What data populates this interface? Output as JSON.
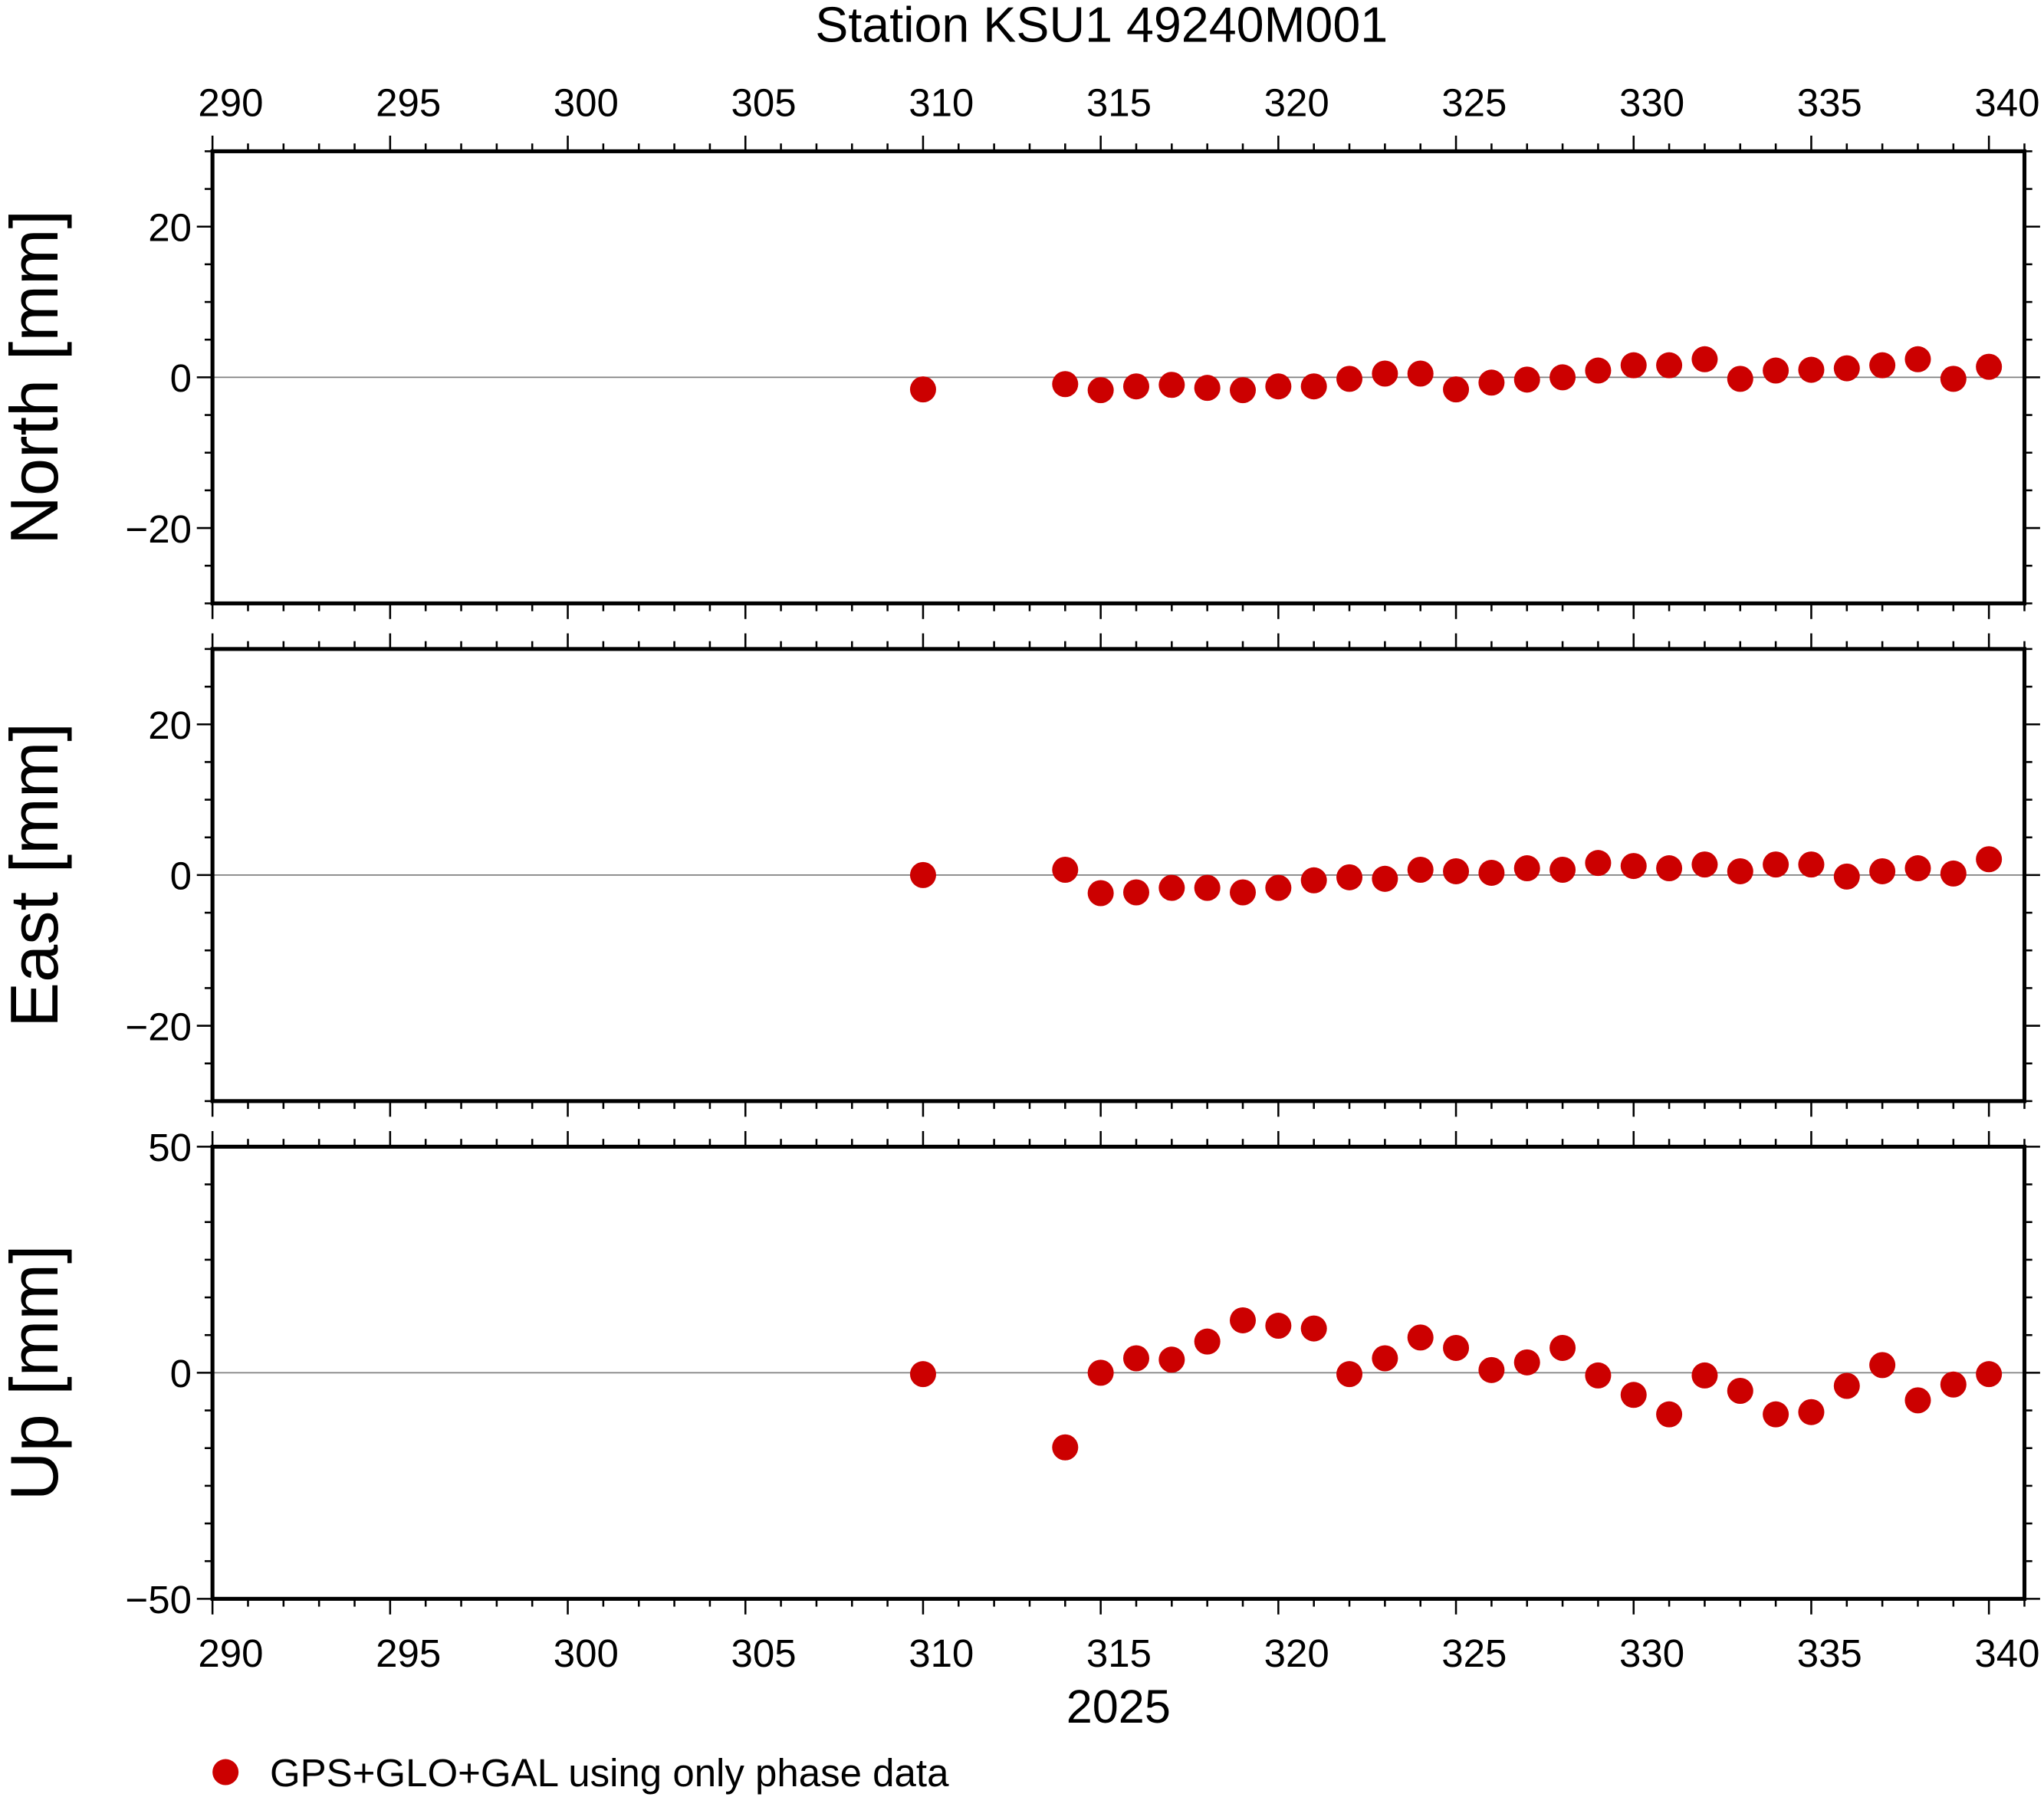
{
  "chart_data": [
    {
      "type": "scatter",
      "title": "Station KSU1 49240M001",
      "ylabel": "North [mm]",
      "xlim": [
        290,
        341
      ],
      "ylim": [
        -30,
        30
      ],
      "yticks": [
        -20,
        0,
        20
      ],
      "x": [
        310,
        314,
        315,
        316,
        317,
        318,
        319,
        320,
        321,
        322,
        323,
        324,
        325,
        326,
        327,
        328,
        329,
        330,
        331,
        332,
        333,
        334,
        335,
        336,
        337,
        338,
        339,
        340
      ],
      "y": [
        -1.6,
        -0.9,
        -1.7,
        -1.2,
        -1.0,
        -1.4,
        -1.7,
        -1.2,
        -1.2,
        -0.2,
        0.5,
        0.5,
        -1.6,
        -0.7,
        -0.3,
        0.0,
        0.9,
        1.6,
        1.6,
        2.4,
        -0.2,
        0.9,
        1.0,
        1.2,
        1.6,
        2.4,
        -0.2,
        1.4
      ]
    },
    {
      "type": "scatter",
      "ylabel": "East [mm]",
      "xlim": [
        290,
        341
      ],
      "ylim": [
        -30,
        30
      ],
      "yticks": [
        -20,
        0,
        20
      ],
      "x": [
        310,
        314,
        315,
        316,
        317,
        318,
        319,
        320,
        321,
        322,
        323,
        324,
        325,
        326,
        327,
        328,
        329,
        330,
        331,
        332,
        333,
        334,
        335,
        336,
        337,
        338,
        339,
        340
      ],
      "y": [
        0.0,
        0.7,
        -2.4,
        -2.3,
        -1.7,
        -1.7,
        -2.3,
        -1.7,
        -0.7,
        -0.3,
        -0.5,
        0.7,
        0.5,
        0.3,
        0.9,
        0.7,
        1.6,
        1.2,
        0.9,
        1.4,
        0.5,
        1.4,
        1.4,
        -0.2,
        0.5,
        0.9,
        0.2,
        2.1
      ]
    },
    {
      "type": "scatter",
      "ylabel": "Up [mm]",
      "xlabel": "2025",
      "xlim": [
        290,
        341
      ],
      "ylim": [
        -50,
        50
      ],
      "yticks": [
        -50,
        0,
        50
      ],
      "x": [
        310,
        314,
        315,
        316,
        317,
        318,
        319,
        320,
        321,
        322,
        323,
        324,
        325,
        326,
        327,
        328,
        329,
        330,
        331,
        332,
        333,
        334,
        335,
        336,
        337,
        338,
        339,
        340
      ],
      "y": [
        -0.3,
        -16.5,
        0.0,
        3.2,
        2.9,
        6.9,
        11.6,
        10.4,
        9.8,
        -0.3,
        3.2,
        7.8,
        5.5,
        0.6,
        2.3,
        5.5,
        -0.6,
        -4.9,
        -9.2,
        -0.6,
        -4.0,
        -9.2,
        -8.7,
        -2.9,
        1.7,
        -6.1,
        -2.6,
        -0.3
      ]
    }
  ],
  "xticks": [
    290,
    295,
    300,
    305,
    310,
    315,
    320,
    325,
    330,
    335,
    340
  ],
  "legend": {
    "label": "GPS+GLO+GAL using only phase data",
    "placement": "bottom-left"
  },
  "colors": {
    "points": "#cc0000",
    "zero_line": "#808080"
  }
}
